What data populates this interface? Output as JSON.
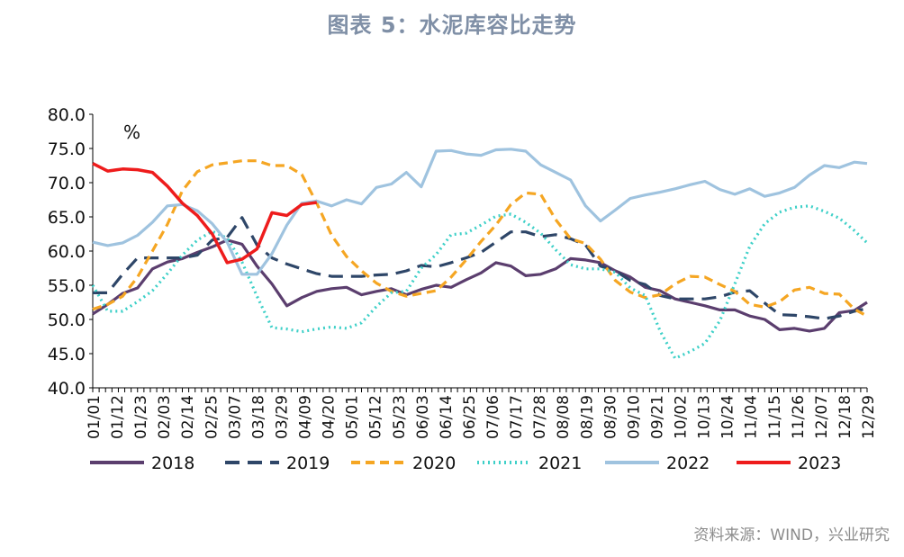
{
  "title": "图表 5：水泥库容比走势",
  "source": "资料来源：WIND，兴业研究",
  "chart_data": {
    "type": "line",
    "unit_label": "%",
    "ylim": [
      40,
      80
    ],
    "yticks": [
      "40.0",
      "45.0",
      "50.0",
      "55.0",
      "60.0",
      "65.0",
      "70.0",
      "75.0",
      "80.0"
    ],
    "xlim": [
      0,
      363
    ],
    "x_tick_labels": [
      "01/01",
      "01/12",
      "01/23",
      "02/03",
      "02/14",
      "02/25",
      "03/07",
      "03/18",
      "03/29",
      "04/09",
      "04/20",
      "05/01",
      "05/12",
      "05/23",
      "06/03",
      "06/14",
      "06/25",
      "07/06",
      "07/17",
      "07/28",
      "08/08",
      "08/19",
      "08/30",
      "09/10",
      "09/21",
      "10/02",
      "10/13",
      "10/24",
      "11/04",
      "11/15",
      "11/26",
      "12/07",
      "12/18",
      "12/29"
    ],
    "grid": false,
    "legend_position": "bottom",
    "series": [
      {
        "name": "2018",
        "color": "#5b3e6e",
        "dash": "solid",
        "x": [
          0,
          7,
          14,
          21,
          28,
          35,
          42,
          49,
          56,
          63,
          70,
          77,
          84,
          91,
          98,
          105,
          112,
          119,
          126,
          133,
          140,
          147,
          154,
          161,
          168,
          175,
          182,
          189,
          196,
          203,
          210,
          217,
          224,
          231,
          238,
          245,
          252,
          259,
          266,
          273,
          280,
          287,
          294,
          301,
          308,
          315,
          322,
          329,
          336,
          343,
          350,
          357,
          363
        ],
        "y": [
          50.8,
          52.2,
          53.8,
          54.6,
          57.4,
          58.4,
          58.9,
          59.8,
          60.6,
          61.6,
          61.0,
          57.8,
          55.2,
          52.0,
          53.2,
          54.1,
          54.5,
          54.7,
          53.6,
          54.1,
          54.5,
          53.6,
          54.4,
          55.0,
          54.7,
          55.8,
          56.8,
          58.3,
          57.8,
          56.4,
          56.6,
          57.4,
          58.9,
          58.7,
          58.3,
          57.1,
          56.2,
          54.7,
          54.2,
          53.0,
          52.5,
          52.0,
          51.4,
          51.4,
          50.5,
          50.0,
          48.5,
          48.7,
          48.3,
          48.7,
          51.0,
          51.3,
          52.5
        ]
      },
      {
        "name": "2019",
        "color": "#2e4668",
        "dash": "long",
        "x": [
          0,
          7,
          14,
          21,
          28,
          35,
          42,
          49,
          56,
          63,
          70,
          77,
          84,
          91,
          98,
          105,
          112,
          119,
          126,
          133,
          140,
          147,
          154,
          161,
          168,
          175,
          182,
          189,
          196,
          203,
          210,
          217,
          224,
          231,
          238,
          245,
          252,
          259,
          266,
          273,
          280,
          287,
          294,
          301,
          308,
          315,
          322,
          329,
          336,
          343,
          350,
          357,
          363
        ],
        "y": [
          53.9,
          53.9,
          56.6,
          59.0,
          59.0,
          59.0,
          59.0,
          59.4,
          61.6,
          62.0,
          64.9,
          60.9,
          59.0,
          58.1,
          57.4,
          56.7,
          56.3,
          56.3,
          56.3,
          56.5,
          56.6,
          57.1,
          57.9,
          57.7,
          58.3,
          59.0,
          59.8,
          61.3,
          62.8,
          62.8,
          62.1,
          62.4,
          61.8,
          60.9,
          57.8,
          57.1,
          55.7,
          55.1,
          53.5,
          53.0,
          53.0,
          53.0,
          53.3,
          54.0,
          54.2,
          52.4,
          50.7,
          50.6,
          50.4,
          50.1,
          50.5,
          51.2,
          51.6
        ]
      },
      {
        "name": "2020",
        "color": "#f5a623",
        "dash": "medium",
        "x": [
          0,
          7,
          14,
          21,
          28,
          35,
          42,
          49,
          56,
          63,
          70,
          77,
          84,
          91,
          98,
          105,
          112,
          119,
          126,
          133,
          140,
          147,
          154,
          161,
          168,
          175,
          182,
          189,
          196,
          203,
          210,
          217,
          224,
          231,
          238,
          245,
          252,
          259,
          266,
          273,
          280,
          287,
          294,
          301,
          308,
          315,
          322,
          329,
          336,
          343,
          350,
          357,
          363
        ],
        "y": [
          51.5,
          52.2,
          53.4,
          56.2,
          60.0,
          63.9,
          68.8,
          71.6,
          72.6,
          72.9,
          73.2,
          73.2,
          72.5,
          72.5,
          71.2,
          67.0,
          62.3,
          59.2,
          57.1,
          55.3,
          54.1,
          53.4,
          53.8,
          54.2,
          56.2,
          58.7,
          61.4,
          63.8,
          66.8,
          68.5,
          68.3,
          64.6,
          61.8,
          61.1,
          58.8,
          55.7,
          54.0,
          53.2,
          53.6,
          55.2,
          56.3,
          56.2,
          55.1,
          54.1,
          52.2,
          51.8,
          52.6,
          54.3,
          54.7,
          53.8,
          53.7,
          51.5,
          50.5
        ]
      },
      {
        "name": "2021",
        "color": "#3ed0c8",
        "dash": "dot",
        "x": [
          0,
          7,
          14,
          21,
          28,
          35,
          42,
          49,
          56,
          63,
          70,
          77,
          84,
          91,
          98,
          105,
          112,
          119,
          126,
          133,
          140,
          147,
          154,
          161,
          168,
          175,
          182,
          189,
          196,
          203,
          210,
          217,
          224,
          231,
          238,
          245,
          252,
          259,
          266,
          273,
          280,
          287,
          294,
          301,
          308,
          315,
          322,
          329,
          336,
          343,
          350,
          357,
          363
        ],
        "y": [
          55.0,
          51.2,
          51.2,
          52.6,
          54.2,
          56.7,
          59.4,
          61.6,
          62.9,
          61.9,
          58.4,
          53.4,
          48.8,
          48.6,
          48.2,
          48.6,
          48.9,
          48.7,
          49.5,
          51.9,
          53.9,
          54.1,
          57.5,
          59.5,
          62.4,
          62.6,
          63.8,
          65.1,
          65.4,
          64.2,
          62.6,
          60.2,
          58.0,
          57.4,
          57.4,
          56.9,
          54.6,
          53.5,
          48.3,
          44.3,
          45.3,
          46.5,
          49.8,
          55.2,
          60.7,
          64.0,
          65.7,
          66.4,
          66.6,
          65.8,
          64.8,
          63.0,
          61.2
        ]
      },
      {
        "name": "2022",
        "color": "#9fc3df",
        "dash": "solid",
        "x": [
          0,
          7,
          14,
          21,
          28,
          35,
          42,
          49,
          56,
          63,
          70,
          77,
          84,
          91,
          98,
          105,
          112,
          119,
          126,
          133,
          140,
          147,
          154,
          161,
          168,
          175,
          182,
          189,
          196,
          203,
          210,
          217,
          224,
          231,
          238,
          245,
          252,
          259,
          266,
          273,
          280,
          287,
          294,
          301,
          308,
          315,
          322,
          329,
          336,
          343,
          350,
          357,
          363
        ],
        "y": [
          61.3,
          60.8,
          61.2,
          62.3,
          64.2,
          66.6,
          66.8,
          65.9,
          64.0,
          61.3,
          56.6,
          56.6,
          59.6,
          63.8,
          67.0,
          67.3,
          66.6,
          67.5,
          66.9,
          69.3,
          69.8,
          71.5,
          69.4,
          74.6,
          74.7,
          74.2,
          74.0,
          74.8,
          74.9,
          74.6,
          72.6,
          71.5,
          70.4,
          66.6,
          64.4,
          66.0,
          67.7,
          68.2,
          68.6,
          69.1,
          69.7,
          70.2,
          69.0,
          68.3,
          69.1,
          68.0,
          68.5,
          69.3,
          71.1,
          72.5,
          72.2,
          73.0,
          72.8
        ]
      },
      {
        "name": "2023",
        "color": "#ee1c1c",
        "dash": "solid",
        "x": [
          0,
          7,
          14,
          21,
          28,
          35,
          42,
          49,
          56,
          63,
          70,
          77,
          84,
          91,
          98,
          105
        ],
        "y": [
          72.8,
          71.7,
          72.0,
          71.9,
          71.5,
          69.5,
          67.0,
          65.2,
          62.5,
          58.3,
          58.8,
          60.3,
          65.6,
          65.2,
          66.8,
          67.1
        ]
      }
    ]
  }
}
